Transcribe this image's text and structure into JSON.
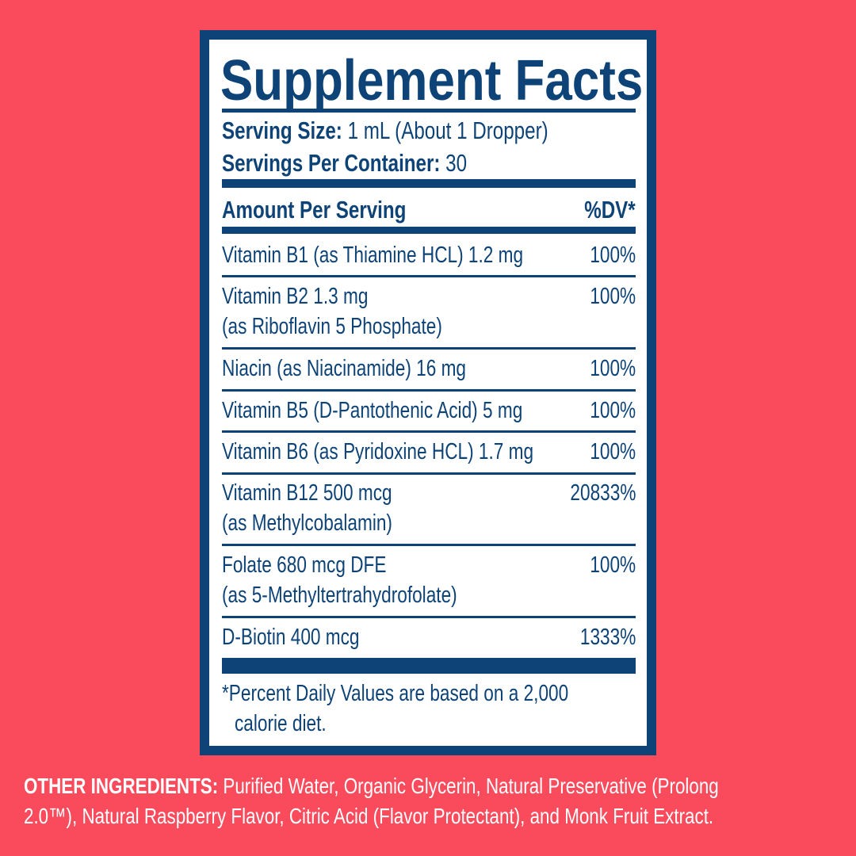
{
  "title": "Supplement Facts",
  "serving_size": {
    "label": "Serving Size:",
    "value": " 1 mL (About 1 Dropper)"
  },
  "servings_per_container": {
    "label": "Servings Per Container:",
    "value": " 30"
  },
  "header": {
    "amount": "Amount Per Serving",
    "dv": "%DV*"
  },
  "rows": [
    {
      "line1": "Vitamin B1 (as Thiamine HCL)  1.2 mg",
      "line2": "",
      "dv": "100%"
    },
    {
      "line1": "Vitamin B2  1.3 mg",
      "line2": "(as Riboflavin 5 Phosphate)",
      "dv": "100%"
    },
    {
      "line1": "Niacin (as Niacinamide)  16 mg",
      "line2": "",
      "dv": "100%"
    },
    {
      "line1": "Vitamin B5 (D-Pantothenic Acid)  5 mg",
      "line2": "",
      "dv": "100%"
    },
    {
      "line1": "Vitamin B6 (as Pyridoxine HCL)  1.7 mg",
      "line2": "",
      "dv": "100%"
    },
    {
      "line1": "Vitamin B12  500 mcg",
      "line2": "(as Methylcobalamin)",
      "dv": "20833%"
    },
    {
      "line1": "Folate  680 mcg DFE",
      "line2": "(as 5-Methyltertrahydrofolate)",
      "dv": "100%"
    },
    {
      "line1": "D-Biotin  400 mcg",
      "line2": "",
      "dv": "1333%"
    }
  ],
  "footnote": {
    "line1": "*Percent Daily Values are based on a 2,000",
    "line2": "calorie diet."
  },
  "other_ingredients": {
    "label": "OTHER INGREDIENTS:",
    "line1": " Purified Water, Organic Glycerin, Natural Preservative (Prolong",
    "line2": "2.0™), Natural Raspberry Flavor, Citric Acid (Flavor Protectant), and Monk Fruit Extract."
  },
  "colors": {
    "background": "#F94B5C",
    "navy": "#0D4377"
  }
}
